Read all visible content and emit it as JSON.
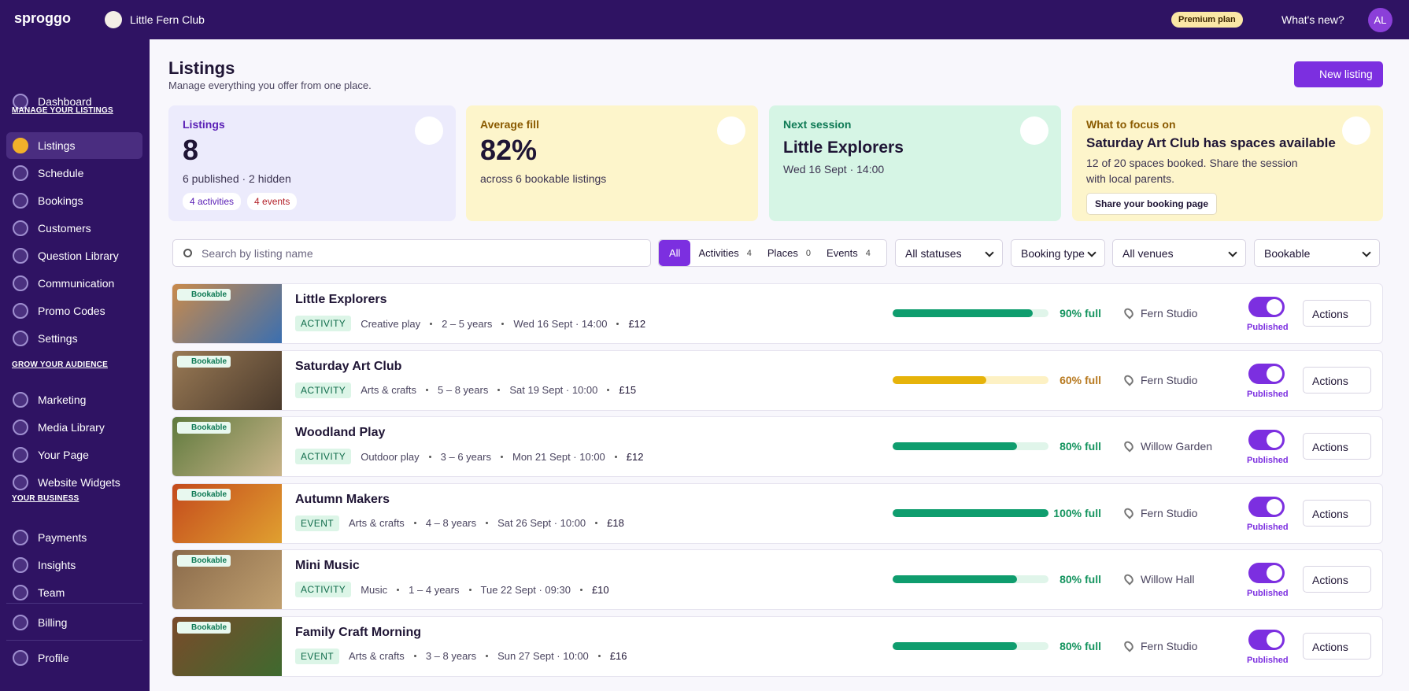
{
  "topbar": {
    "brand": "sproggo",
    "org": "Little Fern Club",
    "plan": "Premium plan",
    "whats_new": "What's new?",
    "avatar": "AL"
  },
  "sidebar": {
    "dashboard": "Dashboard",
    "sections": [
      {
        "title": "MANAGE YOUR LISTINGS",
        "items": [
          "Listings",
          "Schedule",
          "Bookings",
          "Customers",
          "Question Library",
          "Communication",
          "Promo Codes",
          "Settings"
        ]
      },
      {
        "title": "GROW YOUR AUDIENCE",
        "items": [
          "Marketing",
          "Media Library",
          "Your Page",
          "Website Widgets"
        ]
      },
      {
        "title": "YOUR BUSINESS",
        "items": [
          "Payments",
          "Insights",
          "Team"
        ]
      }
    ],
    "billing": "Billing",
    "profile": "Profile"
  },
  "header": {
    "title": "Listings",
    "subtitle": "Manage everything you offer from one place.",
    "new_button": "New listing"
  },
  "cards": [
    {
      "label": "Listings",
      "value": "8",
      "detail": "6 published · 2 hidden",
      "tags": [
        "4 activities",
        "4 events"
      ]
    },
    {
      "label": "Average fill",
      "value": "82%",
      "detail": "across 6 bookable listings"
    },
    {
      "label": "Next session",
      "value": "Little Explorers",
      "detail": "Wed 16 Sept · 14:00"
    },
    {
      "label": "What to focus on",
      "value": "Saturday Art Club has spaces available",
      "detail": "12 of 20 spaces booked. Share the session with local parents.",
      "button": "Share your booking page"
    }
  ],
  "filters": {
    "search": "Search by listing name",
    "tabs": [
      {
        "label": "All"
      },
      {
        "label": "Activities",
        "count": 4
      },
      {
        "label": "Places",
        "count": 0
      },
      {
        "label": "Events",
        "count": 4
      }
    ],
    "selects": [
      "All statuses",
      "Booking type",
      "All venues",
      "Bookable"
    ]
  },
  "listings": [
    {
      "badge": "Bookable",
      "name": "Little Explorers",
      "type": "ACTIVITY",
      "category": "Creative play",
      "ages": "2 – 5 years",
      "session": "Wed 16 Sept · 14:00",
      "price": "£12",
      "fill": 90,
      "fill_label": "90% full",
      "venue": "Fern Studio",
      "status": "Published",
      "actions": "Actions"
    },
    {
      "badge": "Bookable",
      "name": "Saturday Art Club",
      "type": "ACTIVITY",
      "category": "Arts & crafts",
      "ages": "5 – 8 years",
      "session": "Sat 19 Sept · 10:00",
      "price": "£15",
      "fill": 60,
      "fill_label": "60% full",
      "venue": "Fern Studio",
      "status": "Published",
      "actions": "Actions"
    },
    {
      "badge": "Bookable",
      "name": "Woodland Play",
      "type": "ACTIVITY",
      "category": "Outdoor play",
      "ages": "3 – 6 years",
      "session": "Mon 21 Sept · 10:00",
      "price": "£12",
      "fill": 80,
      "fill_label": "80% full",
      "venue": "Willow Garden",
      "status": "Published",
      "actions": "Actions"
    },
    {
      "badge": "Bookable",
      "name": "Autumn Makers",
      "type": "EVENT",
      "category": "Arts & crafts",
      "ages": "4 – 8 years",
      "session": "Sat 26 Sept · 10:00",
      "price": "£18",
      "fill": 100,
      "fill_label": "100% full",
      "venue": "Fern Studio",
      "status": "Published",
      "actions": "Actions"
    },
    {
      "badge": "Bookable",
      "name": "Mini Music",
      "type": "ACTIVITY",
      "category": "Music",
      "ages": "1 – 4 years",
      "session": "Tue 22 Sept · 09:30",
      "price": "£10",
      "fill": 80,
      "fill_label": "80% full",
      "venue": "Willow Hall",
      "status": "Published",
      "actions": "Actions"
    },
    {
      "badge": "Bookable",
      "name": "Family Craft Morning",
      "type": "EVENT",
      "category": "Arts & crafts",
      "ages": "3 – 8 years",
      "session": "Sun 27 Sept · 10:00",
      "price": "£16",
      "fill": 80,
      "fill_label": "80% full",
      "venue": "Fern Studio",
      "status": "Published",
      "actions": "Actions"
    }
  ]
}
